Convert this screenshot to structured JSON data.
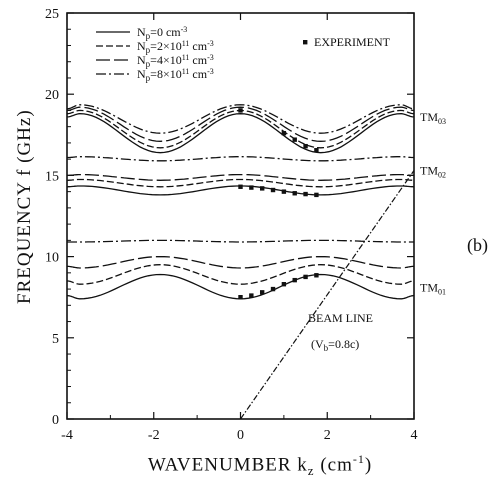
{
  "chart_data": {
    "type": "line",
    "panel_label": "(b)",
    "xlabel": "WAVENUMBER  k",
    "xlabel_subscript": "z",
    "xlabel_unit": " (cm",
    "xlabel_unit_sup": "-1",
    "xlabel_close": ")",
    "ylabel": "FREQUENCY  f (GHz)",
    "xlim": [
      -4,
      4
    ],
    "ylim": [
      0,
      25
    ],
    "xticks": [
      -4,
      -2,
      0,
      2,
      4
    ],
    "yticks": [
      0,
      5,
      10,
      15,
      20,
      25
    ],
    "grid": false,
    "legend_position": "top-left",
    "series": [
      {
        "name": "N_p=0 cm^-3",
        "legend_label": "N",
        "legend_sub": "p",
        "legend_rest": "=0  cm",
        "legend_sup": "-3",
        "dash": "solid",
        "bands": [
          {
            "mode": "TM01",
            "values_at_x": {
              "x": [
                -4,
                -3.7,
                -1.85,
                0,
                1.85,
                3.7,
                4
              ],
              "y": [
                7.6,
                7.4,
                8.9,
                7.4,
                8.9,
                7.4,
                7.6
              ]
            }
          },
          {
            "mode": "TM02",
            "values_at_x": {
              "x": [
                -4,
                -3.7,
                -1.85,
                0,
                1.85,
                3.7,
                4
              ],
              "y": [
                14.3,
                14.35,
                13.8,
                14.35,
                13.8,
                14.35,
                14.3
              ]
            }
          },
          {
            "mode": "TM03",
            "values_at_x": {
              "x": [
                -4,
                -3.7,
                -1.85,
                0,
                1.85,
                3.7,
                4
              ],
              "y": [
                18.6,
                18.8,
                16.4,
                18.8,
                16.4,
                18.8,
                18.6
              ]
            }
          }
        ]
      },
      {
        "name": "N_p=2×10^11 cm^-3",
        "legend_label": "N",
        "legend_sub": "p",
        "legend_rest": "=2×10",
        "legend_exp": "11",
        "legend_unit": " cm",
        "legend_sup": "-3",
        "dash": "7,3",
        "bands": [
          {
            "mode": "TM01",
            "values_at_x": {
              "x": [
                -4,
                -3.7,
                -1.85,
                0,
                1.85,
                3.7,
                4
              ],
              "y": [
                8.5,
                8.3,
                9.5,
                8.3,
                9.5,
                8.3,
                8.5
              ]
            }
          },
          {
            "mode": "TM02",
            "values_at_x": {
              "x": [
                -4,
                -3.7,
                -1.85,
                0,
                1.85,
                3.7,
                4
              ],
              "y": [
                14.7,
                14.75,
                14.3,
                14.75,
                14.3,
                14.75,
                14.7
              ]
            }
          },
          {
            "mode": "TM03",
            "values_at_x": {
              "x": [
                -4,
                -3.7,
                -1.85,
                0,
                1.85,
                3.7,
                4
              ],
              "y": [
                18.8,
                19.0,
                16.7,
                19.0,
                16.7,
                19.0,
                18.8
              ]
            }
          }
        ]
      },
      {
        "name": "N_p=4×10^11 cm^-3",
        "legend_label": "N",
        "legend_sub": "p",
        "legend_rest": "=4×10",
        "legend_exp": "11",
        "legend_unit": " cm",
        "legend_sup": "-3",
        "dash": "14,4",
        "bands": [
          {
            "mode": "TM01",
            "values_at_x": {
              "x": [
                -4,
                -3.7,
                -1.85,
                0,
                1.85,
                3.7,
                4
              ],
              "y": [
                9.4,
                9.3,
                10.0,
                9.3,
                10.0,
                9.3,
                9.4
              ]
            }
          },
          {
            "mode": "TM02",
            "values_at_x": {
              "x": [
                -4,
                -3.7,
                -1.85,
                0,
                1.85,
                3.7,
                4
              ],
              "y": [
                15.0,
                15.05,
                14.7,
                15.05,
                14.7,
                15.05,
                15.0
              ]
            }
          },
          {
            "mode": "TM03",
            "values_at_x": {
              "x": [
                -4,
                -3.7,
                -1.85,
                0,
                1.85,
                3.7,
                4
              ],
              "y": [
                19.0,
                19.2,
                17.1,
                19.2,
                17.1,
                19.2,
                19.0
              ]
            }
          }
        ]
      },
      {
        "name": "N_p=8×10^11 cm^-3",
        "legend_label": "N",
        "legend_sub": "p",
        "legend_rest": "=8×10",
        "legend_exp": "11",
        "legend_unit": " cm",
        "legend_sup": "-3",
        "dash": "10,3,2,3",
        "bands": [
          {
            "mode": "TM01",
            "values_at_x": {
              "x": [
                -4,
                -3.7,
                -1.85,
                0,
                1.85,
                3.7,
                4
              ],
              "y": [
                10.9,
                10.9,
                11.0,
                10.9,
                11.0,
                10.9,
                10.9
              ]
            }
          },
          {
            "mode": "TM02",
            "values_at_x": {
              "x": [
                -4,
                -3.7,
                -1.85,
                0,
                1.85,
                3.7,
                4
              ],
              "y": [
                16.1,
                16.15,
                15.9,
                16.15,
                15.9,
                16.15,
                16.1
              ]
            }
          },
          {
            "mode": "TM03",
            "values_at_x": {
              "x": [
                -4,
                -3.7,
                -1.85,
                0,
                1.85,
                3.7,
                4
              ],
              "y": [
                19.1,
                19.35,
                17.6,
                19.35,
                17.6,
                19.35,
                19.1
              ]
            }
          }
        ]
      }
    ],
    "experiment": {
      "name": "EXPERIMENT",
      "points": [
        {
          "x": 0.0,
          "y": 7.5
        },
        {
          "x": 0.25,
          "y": 7.6
        },
        {
          "x": 0.5,
          "y": 7.8
        },
        {
          "x": 0.75,
          "y": 8.0
        },
        {
          "x": 1.0,
          "y": 8.3
        },
        {
          "x": 1.25,
          "y": 8.55
        },
        {
          "x": 1.5,
          "y": 8.75
        },
        {
          "x": 1.75,
          "y": 8.85
        },
        {
          "x": 0.0,
          "y": 14.3
        },
        {
          "x": 0.25,
          "y": 14.25
        },
        {
          "x": 0.5,
          "y": 14.2
        },
        {
          "x": 0.75,
          "y": 14.1
        },
        {
          "x": 1.0,
          "y": 14.0
        },
        {
          "x": 1.25,
          "y": 13.9
        },
        {
          "x": 1.5,
          "y": 13.85
        },
        {
          "x": 1.75,
          "y": 13.8
        },
        {
          "x": 0.0,
          "y": 19.0
        },
        {
          "x": 1.0,
          "y": 17.6
        },
        {
          "x": 1.25,
          "y": 17.2
        },
        {
          "x": 1.5,
          "y": 16.8
        },
        {
          "x": 1.75,
          "y": 16.55
        }
      ]
    },
    "beam_line": {
      "name": "BEAM LINE",
      "sub_label_open": "(V",
      "sub_label_sub": "b",
      "sub_label_rest": "=0.8c)",
      "x": [
        0,
        4
      ],
      "y": [
        0,
        15.3
      ]
    },
    "mode_labels": [
      {
        "text": "TM",
        "sub": "01",
        "y": 8.1
      },
      {
        "text": "TM",
        "sub": "02",
        "y": 15.3
      },
      {
        "text": "TM",
        "sub": "03",
        "y": 18.6
      }
    ]
  }
}
